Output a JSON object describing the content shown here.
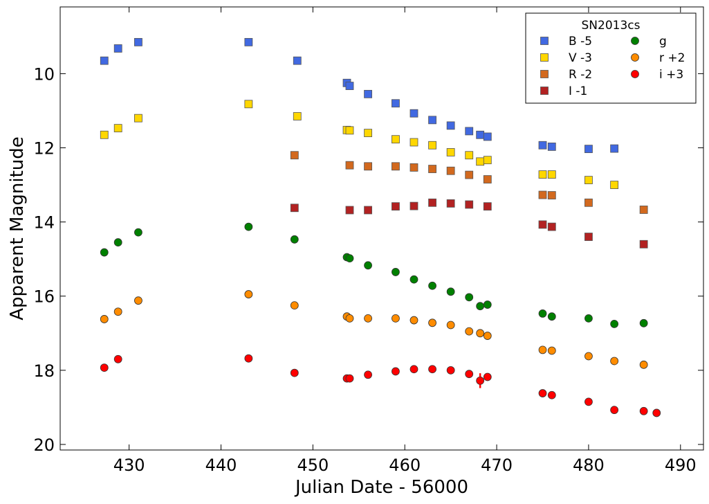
{
  "chart_data": {
    "type": "scatter",
    "title": "",
    "xlabel": "Julian Date - 56000",
    "ylabel": "Apparent Magnitude",
    "xlim": [
      422.5,
      492.5
    ],
    "ylim": [
      8.2,
      20.15
    ],
    "y_inverted": true,
    "grid": false,
    "xticks": [
      430,
      440,
      450,
      460,
      470,
      480,
      490
    ],
    "yticks": [
      10,
      12,
      14,
      16,
      18,
      20
    ],
    "legend": {
      "title": "SN2013cs",
      "placement": "top-right",
      "columns": 2
    },
    "series": [
      {
        "name": "B -5",
        "marker": "square",
        "color": "#4169e1",
        "x": [
          427.3,
          428.8,
          431.0,
          443.0,
          448.3,
          453.7,
          454.0,
          456.0,
          459.0,
          461.0,
          463.0,
          465.0,
          467.0,
          468.2,
          469.0,
          475.0,
          476.0,
          480.0,
          482.8
        ],
        "y": [
          9.65,
          9.32,
          9.15,
          9.15,
          9.65,
          10.25,
          10.33,
          10.55,
          10.8,
          11.07,
          11.25,
          11.4,
          11.55,
          11.65,
          11.7,
          11.93,
          11.97,
          12.03,
          12.02
        ]
      },
      {
        "name": "V -3",
        "marker": "square",
        "color": "#ffd700",
        "x": [
          427.3,
          428.8,
          431.0,
          443.0,
          448.3,
          453.7,
          454.0,
          456.0,
          459.0,
          461.0,
          463.0,
          465.0,
          467.0,
          468.2,
          469.0,
          475.0,
          476.0,
          480.0,
          482.8
        ],
        "y": [
          11.65,
          11.47,
          11.2,
          10.82,
          11.15,
          11.52,
          11.53,
          11.6,
          11.77,
          11.85,
          11.93,
          12.12,
          12.2,
          12.37,
          12.33,
          12.72,
          12.72,
          12.87,
          13.0
        ]
      },
      {
        "name": "R -2",
        "marker": "square",
        "color": "#d2691e",
        "x": [
          448.0,
          454.0,
          456.0,
          459.0,
          461.0,
          463.0,
          465.0,
          467.0,
          469.0,
          475.0,
          476.0,
          480.0,
          486.0
        ],
        "y": [
          12.2,
          12.47,
          12.5,
          12.5,
          12.53,
          12.57,
          12.62,
          12.73,
          12.85,
          13.27,
          13.28,
          13.48,
          13.67
        ]
      },
      {
        "name": "I -1",
        "marker": "square",
        "color": "#b22222",
        "x": [
          448.0,
          454.0,
          456.0,
          459.0,
          461.0,
          463.0,
          465.0,
          467.0,
          469.0,
          475.0,
          476.0,
          480.0,
          486.0
        ],
        "y": [
          13.62,
          13.68,
          13.68,
          13.58,
          13.57,
          13.48,
          13.5,
          13.53,
          13.58,
          14.07,
          14.13,
          14.4,
          14.6
        ]
      },
      {
        "name": "g",
        "marker": "circle",
        "color": "#008000",
        "x": [
          427.3,
          428.8,
          431.0,
          443.0,
          448.0,
          453.7,
          454.0,
          456.0,
          459.0,
          461.0,
          463.0,
          465.0,
          467.0,
          468.2,
          469.0,
          475.0,
          476.0,
          480.0,
          482.8,
          486.0
        ],
        "y": [
          14.82,
          14.55,
          14.28,
          14.13,
          14.47,
          14.95,
          14.98,
          15.17,
          15.35,
          15.55,
          15.72,
          15.88,
          16.03,
          16.27,
          16.23,
          16.47,
          16.55,
          16.6,
          16.75,
          16.73
        ]
      },
      {
        "name": "r +2",
        "marker": "circle",
        "color": "#ff8c00",
        "x": [
          427.3,
          428.8,
          431.0,
          443.0,
          448.0,
          453.7,
          454.0,
          456.0,
          459.0,
          461.0,
          463.0,
          465.0,
          467.0,
          468.2,
          469.0,
          475.0,
          476.0,
          480.0,
          482.8,
          486.0
        ],
        "y": [
          16.62,
          16.42,
          16.12,
          15.95,
          16.25,
          16.55,
          16.6,
          16.6,
          16.6,
          16.65,
          16.72,
          16.78,
          16.95,
          17.0,
          17.07,
          17.45,
          17.47,
          17.62,
          17.75,
          17.85
        ]
      },
      {
        "name": "i +3",
        "marker": "circle",
        "color": "#ff0000",
        "x": [
          427.3,
          428.8,
          443.0,
          448.0,
          453.7,
          454.0,
          456.0,
          459.0,
          461.0,
          463.0,
          465.0,
          467.0,
          468.2,
          469.0,
          475.0,
          476.0,
          480.0,
          482.8,
          486.0,
          487.4
        ],
        "y": [
          17.93,
          17.7,
          17.68,
          18.07,
          18.22,
          18.22,
          18.12,
          18.03,
          17.97,
          17.97,
          18.0,
          18.1,
          18.28,
          18.18,
          18.62,
          18.67,
          18.85,
          19.07,
          19.1,
          19.15
        ],
        "yerr": [
          0,
          0,
          0,
          0,
          0,
          0,
          0,
          0,
          0,
          0,
          0,
          0,
          0.2,
          0,
          0,
          0,
          0,
          0,
          0,
          0
        ]
      }
    ]
  }
}
